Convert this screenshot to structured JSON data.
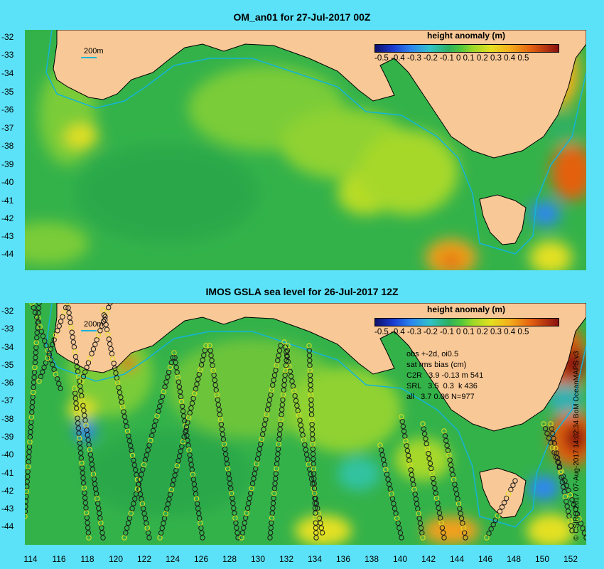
{
  "top_panel": {
    "title": "OM_an01 for 27-Jul-2017 00Z",
    "isobath_label": "200m",
    "colorbar_title": "height anomaly (m)",
    "colorbar_ticks": "-0.5 -0.4 -0.3 -0.2 -0.1   0   0.1  0.2  0.3  0.4  0.5"
  },
  "bottom_panel": {
    "title": "IMOS GSLA sea level  for 26-Jul-2017 12Z",
    "isobath_label": "200m",
    "colorbar_title": "height anomaly (m)",
    "colorbar_ticks": "-0.5 -0.4 -0.3 -0.2 -0.1   0   0.1  0.2  0.3  0.4  0.5",
    "stats": {
      "line1": "obs +-2d, oi0.5",
      "line2": "sat rms bias (cm)",
      "line3": "C2R   3.9 -0.13 m 541",
      "line4": "SRL   3.5  0.3  k 436",
      "line5": "all   3.7 0.06 N=977"
    }
  },
  "credit": "© CSIRO 2017  07-Aug-2017 14:02:34 BoM OceanMAPS v3",
  "y_ticks_top": [
    "-32",
    "-33",
    "-34",
    "-35",
    "-36",
    "-37",
    "-38",
    "-39",
    "-40",
    "-41",
    "-42",
    "-43",
    "-44"
  ],
  "y_ticks_bottom": [
    "-32",
    "-33",
    "-34",
    "-35",
    "-36",
    "-37",
    "-38",
    "-39",
    "-40",
    "-41",
    "-42",
    "-43",
    "-44"
  ],
  "x_ticks": [
    "114",
    "116",
    "118",
    "120",
    "122",
    "124",
    "126",
    "128",
    "130",
    "132",
    "134",
    "136",
    "138",
    "140",
    "142",
    "144",
    "146",
    "148",
    "150",
    "152"
  ],
  "colors": {
    "background": "#5ce2f8",
    "land": "#f8c896",
    "isobath": "#14b4d8",
    "ocean_base": "#34b24a"
  }
}
